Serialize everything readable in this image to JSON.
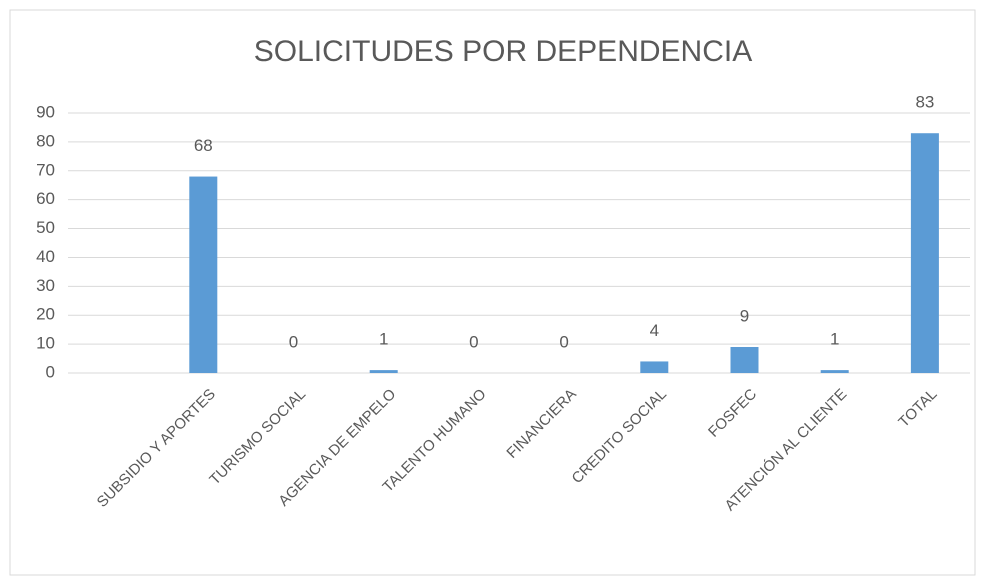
{
  "chart_data": {
    "type": "bar",
    "title": "SOLICITUDES POR DEPENDENCIA",
    "categories": [
      null,
      "SUBSIDIO Y APORTES",
      "TURISMO SOCIAL",
      "AGENCIA DE EMPELO",
      "TALENTO HUMANO",
      "FINANCIERA",
      "CREDITO SOCIAL",
      "FOSFEC",
      "ATENCIÓN AL CLIENTE",
      "TOTAL"
    ],
    "values": [
      null,
      68,
      0,
      1,
      0,
      0,
      4,
      9,
      1,
      83
    ],
    "color": "#5b9bd5",
    "ylim": [
      0,
      90
    ],
    "yticks": [
      0,
      10,
      20,
      30,
      40,
      50,
      60,
      70,
      80,
      90
    ],
    "grid": true
  }
}
